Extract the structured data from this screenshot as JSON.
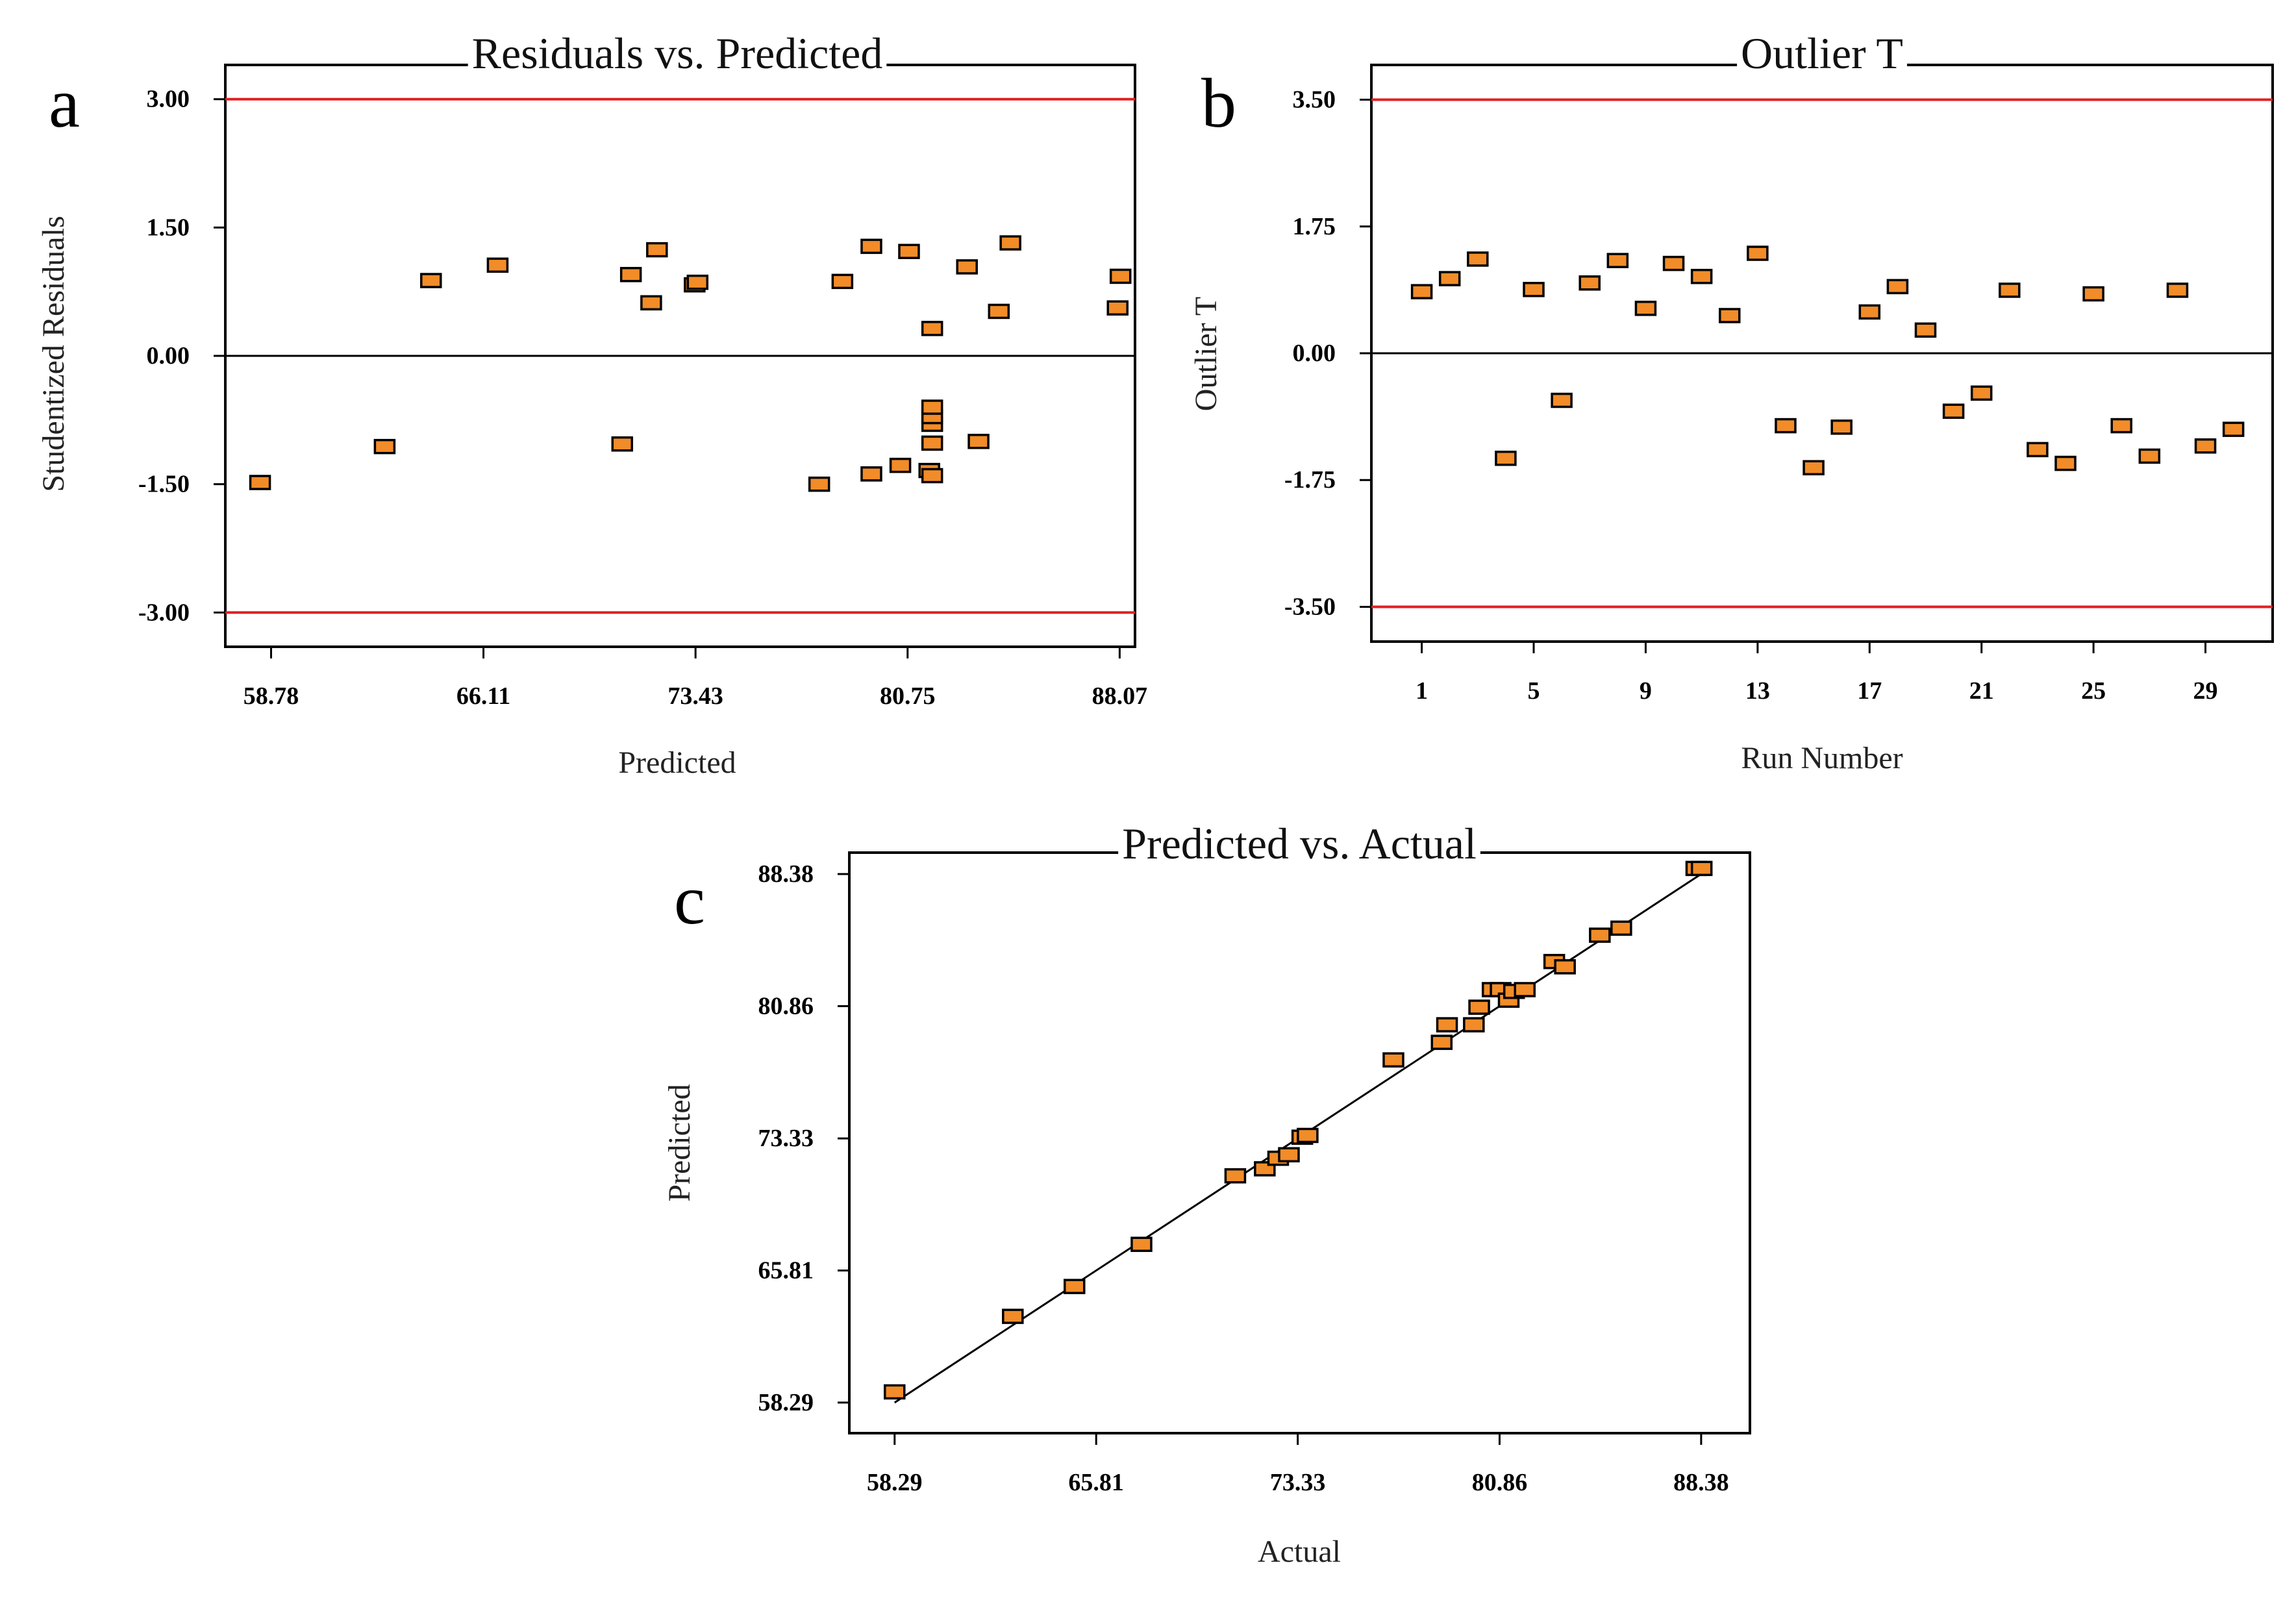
{
  "chart_data": [
    {
      "type": "scatter",
      "panel": "a",
      "title": "Residuals vs. Predicted",
      "xlabel": "Predicted",
      "ylabel": "Studentized Residuals",
      "xlim": [
        57.2,
        88.6
      ],
      "ylim": [
        -3.4,
        3.4
      ],
      "xticks": [
        "58.78",
        "66.11",
        "73.43",
        "80.75",
        "88.07"
      ],
      "yticks": [
        "3.00",
        "1.50",
        "0.00",
        "-1.50",
        "-3.00"
      ],
      "limit_lines": [
        3.0,
        -3.0
      ],
      "limit_color": "#e02020",
      "marker_color": "#f28c28",
      "points": [
        {
          "x": 58.4,
          "y": -1.48
        },
        {
          "x": 62.7,
          "y": -1.06
        },
        {
          "x": 64.3,
          "y": 0.88
        },
        {
          "x": 66.6,
          "y": 1.06
        },
        {
          "x": 71.2,
          "y": 0.95
        },
        {
          "x": 71.9,
          "y": 0.62
        },
        {
          "x": 72.1,
          "y": 1.24
        },
        {
          "x": 73.4,
          "y": 0.83
        },
        {
          "x": 73.5,
          "y": 0.86
        },
        {
          "x": 70.9,
          "y": -1.03
        },
        {
          "x": 77.7,
          "y": -1.5
        },
        {
          "x": 78.5,
          "y": 0.87
        },
        {
          "x": 79.5,
          "y": 1.28
        },
        {
          "x": 79.5,
          "y": -1.38
        },
        {
          "x": 80.5,
          "y": -1.28
        },
        {
          "x": 80.8,
          "y": 1.22
        },
        {
          "x": 81.5,
          "y": -1.34
        },
        {
          "x": 81.6,
          "y": -1.4
        },
        {
          "x": 81.6,
          "y": -1.02
        },
        {
          "x": 81.6,
          "y": -0.8
        },
        {
          "x": 81.6,
          "y": -0.71
        },
        {
          "x": 81.6,
          "y": -0.6
        },
        {
          "x": 81.6,
          "y": 0.32
        },
        {
          "x": 82.8,
          "y": 1.04
        },
        {
          "x": 83.2,
          "y": -1.0
        },
        {
          "x": 83.9,
          "y": 0.52
        },
        {
          "x": 84.3,
          "y": 1.32
        },
        {
          "x": 88.0,
          "y": 0.56
        },
        {
          "x": 88.1,
          "y": 0.93
        }
      ]
    },
    {
      "type": "scatter",
      "panel": "b",
      "title": "Outlier T",
      "xlabel": "Run Number",
      "ylabel": "Outlier T",
      "xlim": [
        -0.8,
        31.4
      ],
      "ylim": [
        -3.98,
        3.98
      ],
      "xticks": [
        "1",
        "5",
        "9",
        "13",
        "17",
        "21",
        "25",
        "29"
      ],
      "yticks": [
        "3.50",
        "1.75",
        "0.00",
        "-1.75",
        "-3.50"
      ],
      "limit_lines": [
        3.5,
        -3.5
      ],
      "limit_color": "#e02020",
      "marker_color": "#f28c28",
      "points": [
        {
          "x": 1,
          "y": 0.85
        },
        {
          "x": 2,
          "y": 1.03
        },
        {
          "x": 3,
          "y": 1.3
        },
        {
          "x": 4,
          "y": -1.45
        },
        {
          "x": 5,
          "y": 0.88
        },
        {
          "x": 6,
          "y": -0.65
        },
        {
          "x": 7,
          "y": 0.97
        },
        {
          "x": 8,
          "y": 1.28
        },
        {
          "x": 9,
          "y": 0.62
        },
        {
          "x": 10,
          "y": 1.24
        },
        {
          "x": 11,
          "y": 1.06
        },
        {
          "x": 12,
          "y": 0.52
        },
        {
          "x": 13,
          "y": 1.38
        },
        {
          "x": 14,
          "y": -1.0
        },
        {
          "x": 15,
          "y": -1.58
        },
        {
          "x": 16,
          "y": -1.02
        },
        {
          "x": 17,
          "y": 0.57
        },
        {
          "x": 18,
          "y": 0.92
        },
        {
          "x": 19,
          "y": 0.32
        },
        {
          "x": 20,
          "y": -0.8
        },
        {
          "x": 21,
          "y": -0.55
        },
        {
          "x": 22,
          "y": 0.87
        },
        {
          "x": 23,
          "y": -1.33
        },
        {
          "x": 24,
          "y": -1.52
        },
        {
          "x": 25,
          "y": 0.82
        },
        {
          "x": 26,
          "y": -1.0
        },
        {
          "x": 27,
          "y": -1.42
        },
        {
          "x": 28,
          "y": 0.87
        },
        {
          "x": 29,
          "y": -1.28
        },
        {
          "x": 30,
          "y": -1.05
        }
      ]
    },
    {
      "type": "scatter",
      "panel": "c",
      "title": "Predicted vs. Actual",
      "xlabel": "Actual",
      "ylabel": "Predicted",
      "xlim": [
        56.6,
        90.2
      ],
      "ylim": [
        56.55,
        89.6
      ],
      "xticks": [
        "58.29",
        "65.81",
        "73.33",
        "80.86",
        "88.38"
      ],
      "yticks": [
        "88.38",
        "80.86",
        "73.33",
        "65.81",
        "58.29"
      ],
      "fit_line": [
        [
          58.29,
          58.29
        ],
        [
          88.38,
          88.38
        ]
      ],
      "marker_color": "#f28c28",
      "points": [
        {
          "x": 58.29,
          "y": 58.9
        },
        {
          "x": 62.7,
          "y": 63.2
        },
        {
          "x": 65.0,
          "y": 64.9
        },
        {
          "x": 67.5,
          "y": 67.3
        },
        {
          "x": 71.0,
          "y": 71.2
        },
        {
          "x": 72.1,
          "y": 71.6
        },
        {
          "x": 72.6,
          "y": 72.2
        },
        {
          "x": 73.0,
          "y": 72.4
        },
        {
          "x": 73.5,
          "y": 73.4
        },
        {
          "x": 73.7,
          "y": 73.5
        },
        {
          "x": 76.9,
          "y": 77.8
        },
        {
          "x": 78.7,
          "y": 78.8
        },
        {
          "x": 78.9,
          "y": 79.8
        },
        {
          "x": 79.9,
          "y": 79.8
        },
        {
          "x": 80.1,
          "y": 80.8
        },
        {
          "x": 80.6,
          "y": 81.8
        },
        {
          "x": 80.9,
          "y": 81.8
        },
        {
          "x": 81.2,
          "y": 81.2
        },
        {
          "x": 81.4,
          "y": 81.7
        },
        {
          "x": 81.8,
          "y": 81.8
        },
        {
          "x": 82.9,
          "y": 83.4
        },
        {
          "x": 83.3,
          "y": 83.1
        },
        {
          "x": 84.6,
          "y": 84.9
        },
        {
          "x": 85.4,
          "y": 85.3
        },
        {
          "x": 88.2,
          "y": 88.7
        },
        {
          "x": 88.4,
          "y": 88.7
        }
      ]
    }
  ]
}
